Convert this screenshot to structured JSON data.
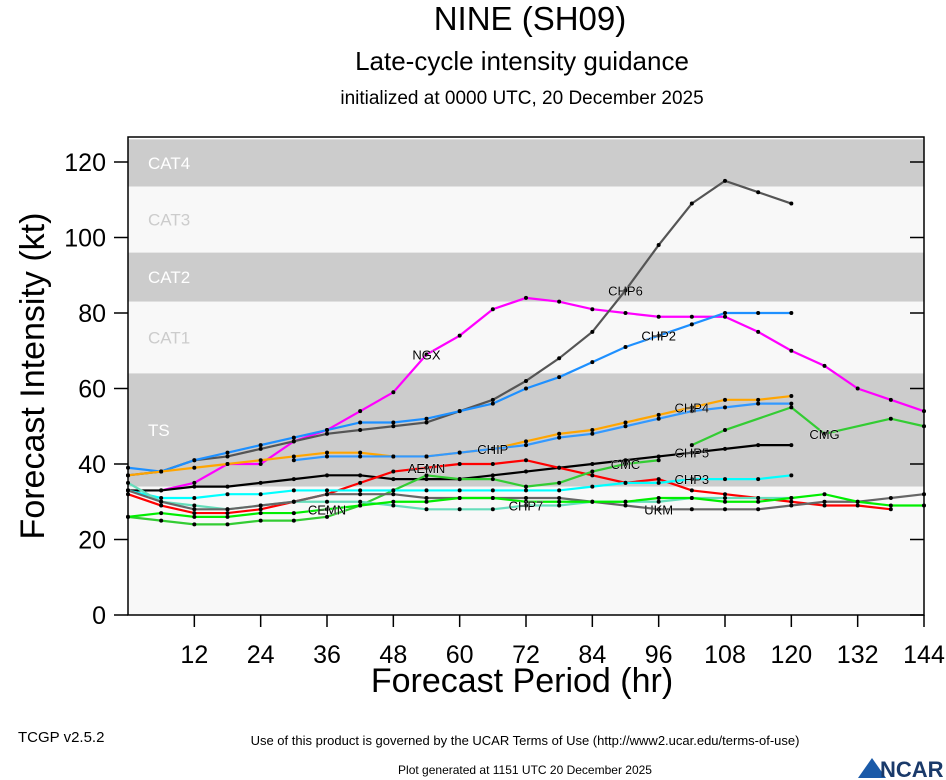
{
  "chart_data": {
    "type": "line",
    "title": "NINE (SH09)",
    "subtitle": "Late-cycle intensity guidance",
    "subtitle2": "initialized at 0000 UTC, 20 December 2025",
    "xlabel": "Forecast Period (hr)",
    "ylabel": "Forecast Intensity (kt)",
    "xlim": [
      0,
      144
    ],
    "ylim": [
      0,
      126
    ],
    "xticks": [
      12,
      24,
      36,
      48,
      60,
      72,
      84,
      96,
      108,
      120,
      132,
      144
    ],
    "yticks": [
      0,
      20,
      40,
      60,
      80,
      100,
      120
    ],
    "bands": [
      {
        "label": "CAT4",
        "from": 113.5,
        "to": 126,
        "color": "#cccccc"
      },
      {
        "label": "CAT3",
        "from": 96,
        "to": 113.5,
        "color": "#f8f8f8"
      },
      {
        "label": "CAT2",
        "from": 83,
        "to": 96,
        "color": "#cccccc"
      },
      {
        "label": "CAT1",
        "from": 64,
        "to": 83,
        "color": "#f8f8f8"
      },
      {
        "label": "TS",
        "from": 34,
        "to": 64,
        "color": "#cccccc"
      },
      {
        "label": "",
        "from": 0,
        "to": 34,
        "color": "#f8f8f8"
      }
    ],
    "series": [
      {
        "name": "NGX",
        "color": "#ff00ff",
        "x": [
          6,
          12,
          18,
          24,
          30,
          36,
          42,
          48,
          54,
          60,
          66,
          72,
          78,
          84,
          90,
          96,
          102,
          108,
          114,
          120,
          126,
          132,
          138,
          144
        ],
        "y": [
          33,
          35,
          40,
          40,
          46,
          49,
          54,
          59,
          69,
          74,
          81,
          84,
          83,
          81,
          80,
          79,
          79,
          79,
          75,
          70,
          66,
          60,
          57,
          54
        ]
      },
      {
        "name": "CHP6",
        "color": "#555555",
        "x": [
          0,
          6,
          12,
          18,
          24,
          30,
          36,
          42,
          48,
          54,
          60,
          66,
          72,
          78,
          84,
          90,
          96,
          102,
          108,
          114,
          120
        ],
        "y": [
          37,
          38,
          41,
          42,
          44,
          46,
          48,
          49,
          50,
          51,
          54,
          57,
          62,
          68,
          75,
          86,
          98,
          109,
          115,
          112,
          109
        ]
      },
      {
        "name": "CHP2",
        "color": "#1e90ff",
        "x": [
          0,
          6,
          12,
          18,
          24,
          30,
          36,
          42,
          48,
          54,
          60,
          66,
          72,
          78,
          84,
          90,
          96,
          102,
          108,
          114,
          120
        ],
        "y": [
          39,
          38,
          41,
          43,
          45,
          47,
          49,
          51,
          51,
          52,
          54,
          56,
          60,
          63,
          67,
          71,
          74,
          77,
          80,
          80,
          80
        ]
      },
      {
        "name": "CHP4",
        "color": "#ffa500",
        "x": [
          0,
          6,
          12,
          18,
          24,
          30,
          36,
          42,
          48,
          54,
          60,
          66,
          72,
          78,
          84,
          90,
          96,
          102,
          108,
          114,
          120
        ],
        "y": [
          37,
          38,
          39,
          40,
          41,
          42,
          43,
          43,
          42,
          42,
          43,
          44,
          46,
          48,
          49,
          51,
          53,
          55,
          57,
          57,
          58
        ]
      },
      {
        "name": "CHIP",
        "color": "#3399ff",
        "x": [
          30,
          36,
          42,
          48,
          54,
          60,
          66,
          72,
          78,
          84,
          90,
          96,
          102,
          108,
          114,
          120
        ],
        "y": [
          41,
          42,
          42,
          42,
          42,
          43,
          44,
          45,
          47,
          48,
          50,
          52,
          54,
          55,
          56,
          56
        ]
      },
      {
        "name": "CHP5",
        "color": "#000000",
        "x": [
          0,
          6,
          12,
          18,
          24,
          30,
          36,
          42,
          48,
          54,
          60,
          66,
          72,
          78,
          84,
          90,
          96,
          102,
          108,
          114,
          120
        ],
        "y": [
          33,
          33,
          34,
          34,
          35,
          36,
          37,
          37,
          36,
          36,
          36,
          37,
          38,
          39,
          40,
          41,
          42,
          43,
          44,
          45,
          45
        ]
      },
      {
        "name": "AEMN",
        "color": "#ff0000",
        "x": [
          0,
          6,
          12,
          18,
          24,
          30,
          36,
          42,
          48,
          54,
          60,
          66,
          72,
          78,
          84,
          90,
          96,
          102,
          108,
          114,
          120,
          126,
          132,
          138
        ],
        "y": [
          32,
          29,
          27,
          27,
          28,
          30,
          32,
          35,
          38,
          39,
          40,
          40,
          41,
          39,
          37,
          35,
          36,
          33,
          32,
          31,
          30,
          29,
          29,
          28
        ]
      },
      {
        "name": "CMC",
        "color": "#33cc33",
        "x": [
          0,
          6,
          12,
          18,
          24,
          30,
          36,
          42,
          48,
          54,
          60,
          66,
          72,
          78,
          84,
          90,
          96
        ],
        "y": [
          26,
          25,
          24,
          24,
          25,
          25,
          26,
          29,
          33,
          37,
          36,
          36,
          34,
          35,
          38,
          40,
          41
        ]
      },
      {
        "name": "CMG",
        "color": "#33cc33",
        "x": [
          102,
          108,
          120,
          126,
          138,
          144
        ],
        "y": [
          45,
          49,
          55,
          48,
          52,
          50
        ]
      },
      {
        "name": "CHP3",
        "color": "#00ffff",
        "x": [
          0,
          6,
          12,
          18,
          24,
          30,
          36,
          42,
          48,
          54,
          60,
          66,
          72,
          78,
          84,
          90,
          96,
          102,
          108,
          114,
          120
        ],
        "y": [
          33,
          31,
          31,
          32,
          32,
          33,
          33,
          33,
          33,
          33,
          33,
          33,
          33,
          33,
          34,
          35,
          35,
          36,
          36,
          36,
          37
        ]
      },
      {
        "name": "CHP7",
        "color": "#66ddbb",
        "x": [
          0,
          6,
          12,
          18,
          24,
          30,
          36,
          42,
          48,
          54,
          60,
          66,
          72,
          78,
          84,
          90,
          96,
          102,
          108,
          114,
          120
        ],
        "y": [
          35,
          30,
          29,
          28,
          29,
          30,
          30,
          30,
          29,
          28,
          28,
          28,
          29,
          29,
          30,
          30,
          30,
          31,
          31,
          31,
          31
        ]
      },
      {
        "name": "UKM",
        "color": "#666666",
        "x": [
          0,
          6,
          12,
          18,
          24,
          30,
          36,
          42,
          48,
          54,
          60,
          66,
          72,
          78,
          84,
          90,
          96,
          102,
          108,
          114,
          120,
          126,
          132,
          138,
          144
        ],
        "y": [
          33,
          30,
          28,
          28,
          29,
          30,
          32,
          32,
          32,
          31,
          31,
          31,
          31,
          31,
          30,
          29,
          28,
          28,
          28,
          28,
          29,
          30,
          30,
          31,
          32
        ]
      },
      {
        "name": "CEMN",
        "color": "#00ee00",
        "x": [
          0,
          6,
          12,
          18,
          24,
          30,
          36,
          42,
          48,
          54,
          60,
          66,
          72,
          78,
          84,
          90,
          96,
          102,
          108,
          114,
          120,
          126,
          132,
          138,
          144
        ],
        "y": [
          26,
          27,
          26,
          26,
          27,
          27,
          28,
          29,
          30,
          30,
          31,
          31,
          30,
          30,
          30,
          30,
          31,
          31,
          30,
          30,
          31,
          32,
          30,
          29,
          29
        ]
      }
    ]
  },
  "footer": {
    "version": "TCGP v2.5.2",
    "terms": "Use of this product is governed by the UCAR Terms of Use (http://www2.ucar.edu/terms-of-use)",
    "generated": "Plot generated at 1151 UTC   20 December 2025",
    "logo": "NCAR"
  }
}
